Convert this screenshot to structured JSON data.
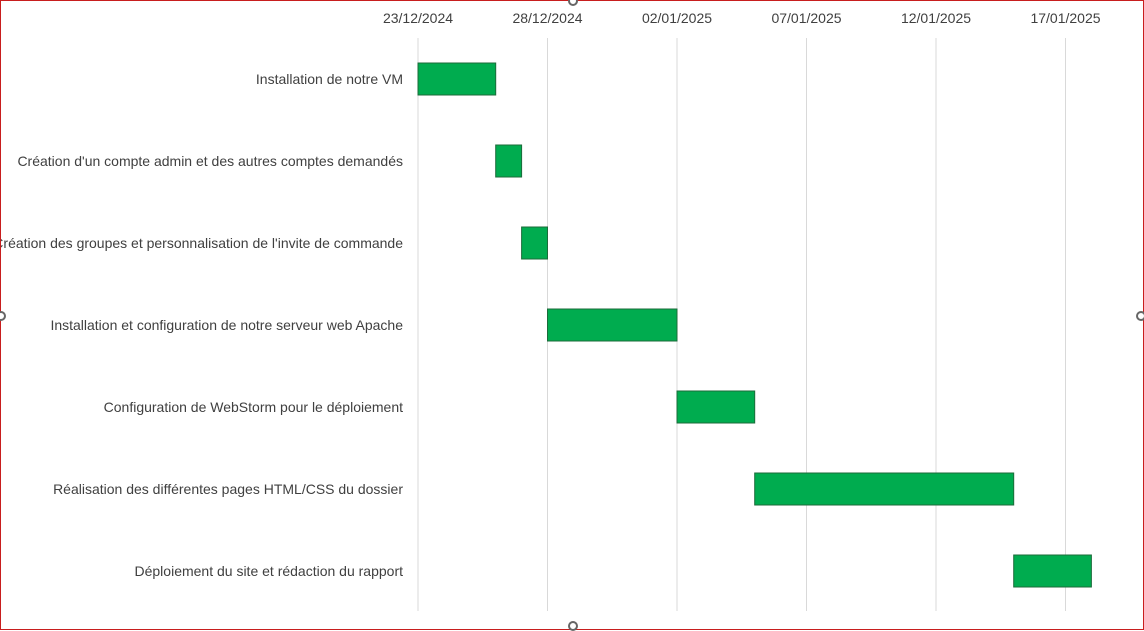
{
  "chart_data": {
    "type": "bar",
    "orientation": "horizontal",
    "subtype": "gantt",
    "title": "",
    "xlabel": "",
    "ylabel": "",
    "x_axis_position": "top",
    "xlim": [
      "2024-12-23",
      "2025-01-18"
    ],
    "x_ticks": [
      "23/12/2024",
      "28/12/2024",
      "02/01/2025",
      "07/01/2025",
      "12/01/2025",
      "17/01/2025"
    ],
    "grid": true,
    "legend": "none",
    "bar_color": "#00ac4f",
    "tasks": [
      {
        "label": "Installation de notre VM",
        "start": "2024-12-23",
        "end": "2024-12-26"
      },
      {
        "label": "Création d'un compte admin et des autres comptes demandés",
        "start": "2024-12-26",
        "end": "2024-12-27"
      },
      {
        "label": "Création des groupes et personnalisation de l'invite de commande",
        "start": "2024-12-27",
        "end": "2024-12-28"
      },
      {
        "label": "Installation et configuration de notre serveur web Apache",
        "start": "2024-12-28",
        "end": "2025-01-02"
      },
      {
        "label": "Configuration de WebStorm pour le déploiement",
        "start": "2025-01-02",
        "end": "2025-01-05"
      },
      {
        "label": "Réalisation des différentes pages HTML/CSS du dossier",
        "start": "2025-01-05",
        "end": "2025-01-15"
      },
      {
        "label": "Déploiement du site et rédaction du rapport",
        "start": "2025-01-15",
        "end": "2025-01-18"
      }
    ]
  }
}
